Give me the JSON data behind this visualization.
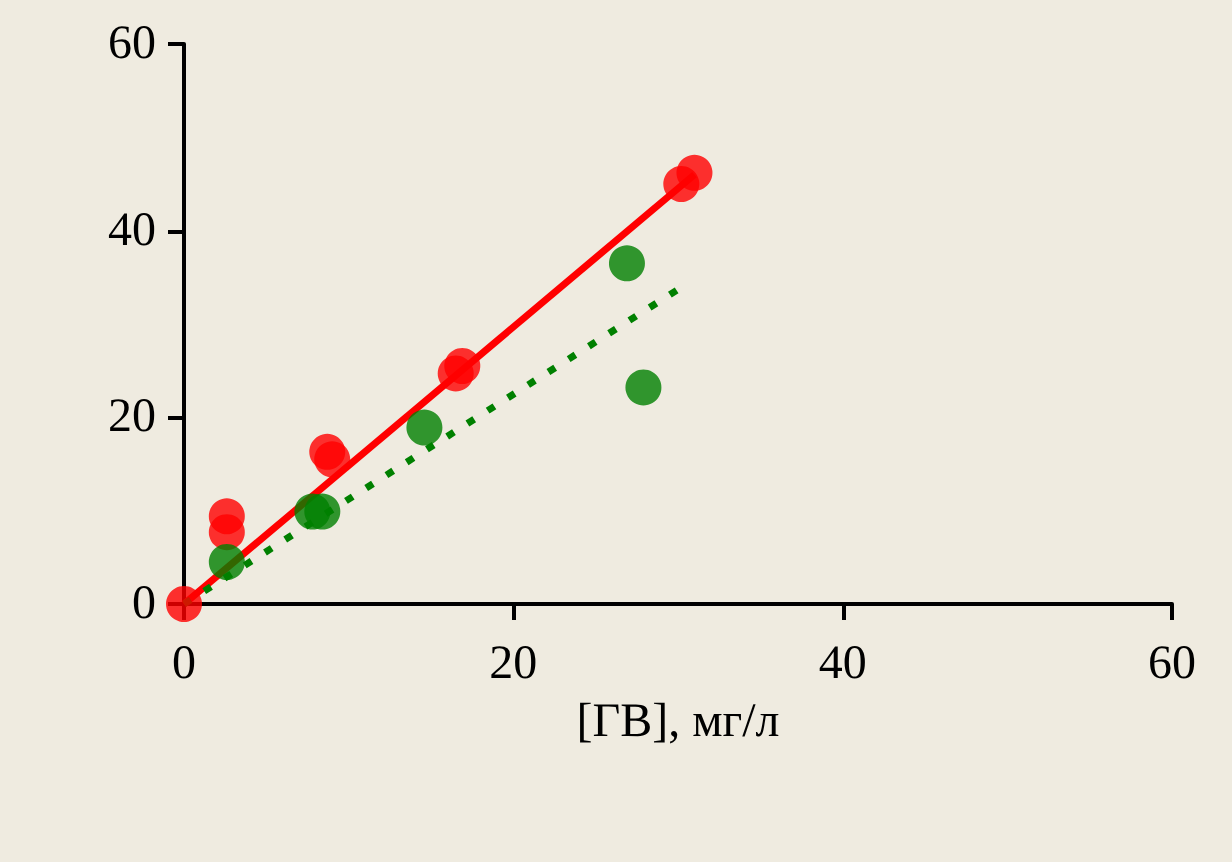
{
  "chart_data": {
    "type": "scatter",
    "xlabel": "[ГВ], мг/л",
    "xlim": [
      0,
      60
    ],
    "xticks": [
      0,
      20,
      40,
      60
    ],
    "ylim": [
      0,
      60
    ],
    "yticks": [
      0,
      20,
      40,
      60
    ],
    "grid": false,
    "marker": "circle",
    "series": [
      {
        "color": "#ff0000",
        "x": [
          0,
          2.6,
          2.6,
          8.7,
          9,
          16.5,
          16.9,
          30.2,
          31
        ],
        "values": [
          0,
          9.4,
          7.7,
          16.3,
          15.5,
          24.7,
          25.5,
          45,
          46.2
        ]
      },
      {
        "color": "#008000",
        "x": [
          2.6,
          7.8,
          8.4,
          14.6,
          26.9,
          27.9
        ],
        "values": [
          4.5,
          9.9,
          9.9,
          18.9,
          36.5,
          23.2
        ]
      },
      {
        "type": "line",
        "color": "#ff0000",
        "line_style": "solid",
        "marker": "none",
        "x": [
          0,
          31
        ],
        "values": [
          0,
          46
        ]
      },
      {
        "type": "line",
        "color": "#008000",
        "line_style": "dotted",
        "marker": "none",
        "x": [
          0,
          30
        ],
        "values": [
          0,
          33.7
        ]
      }
    ]
  }
}
